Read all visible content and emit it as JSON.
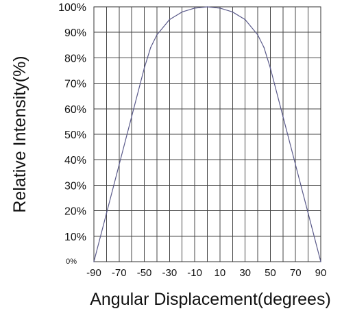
{
  "chart_data": {
    "type": "line",
    "xlabel": "Angular Displacement(degrees)",
    "ylabel": "Relative Intensity(%)",
    "xlim": [
      -90,
      90
    ],
    "ylim": [
      0,
      100
    ],
    "grid": true,
    "x_ticks": [
      -90,
      -70,
      -50,
      -30,
      -10,
      10,
      30,
      50,
      70,
      90
    ],
    "x_tick_labels": [
      "-90",
      "-70",
      "-50",
      "-30",
      "-10",
      "10",
      "30",
      "50",
      "70",
      "90"
    ],
    "y_ticks": [
      0,
      10,
      20,
      30,
      40,
      50,
      60,
      70,
      80,
      90,
      100
    ],
    "y_tick_labels": [
      "0%",
      "10%",
      "20%",
      "30%",
      "40%",
      "50%",
      "60%",
      "70%",
      "80%",
      "90%",
      "100%"
    ],
    "series": [
      {
        "x": [
          -90,
          -80,
          -70,
          -60,
          -50,
          -45,
          -40,
          -30,
          -20,
          -10,
          0,
          10,
          20,
          30,
          40,
          45,
          50,
          60,
          70,
          80,
          90
        ],
        "y": [
          0,
          19,
          38,
          57,
          76,
          84,
          89,
          95,
          98,
          99.5,
          100,
          99.5,
          98,
          95,
          89,
          84,
          76,
          57,
          38,
          19,
          0
        ]
      }
    ],
    "colors": {
      "line": "#5a5a8a",
      "grid": "#444444",
      "text": "#111111"
    }
  }
}
